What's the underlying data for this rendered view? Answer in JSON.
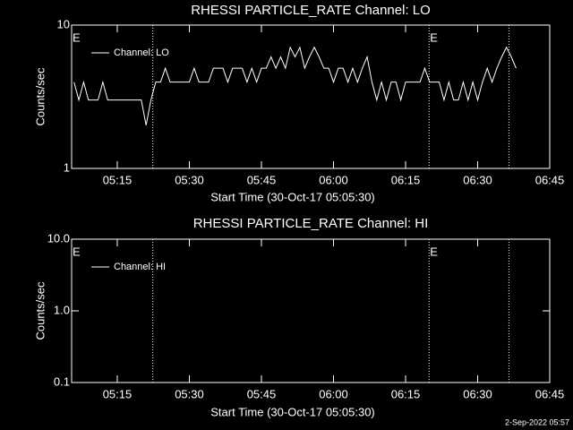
{
  "chart_data": [
    {
      "type": "line",
      "title": "RHESSI PARTICLE_RATE Channel: LO",
      "xlabel": "Start Time (30-Oct-17 05:05:30)",
      "ylabel": "Counts/sec",
      "log_y": true,
      "xlim": [
        305.5,
        405
      ],
      "ylim": [
        1,
        10
      ],
      "xticks": [
        {
          "value": 315,
          "label": "05:15"
        },
        {
          "value": 330,
          "label": "05:30"
        },
        {
          "value": 345,
          "label": "05:45"
        },
        {
          "value": 360,
          "label": "06:00"
        },
        {
          "value": 375,
          "label": "06:15"
        },
        {
          "value": 390,
          "label": "06:30"
        },
        {
          "value": 405,
          "label": "06:45"
        }
      ],
      "yticks": [
        1,
        10
      ],
      "vlines": [
        322.4,
        379.9,
        396.5
      ],
      "annotations": [
        {
          "text": "E",
          "x": 305.5
        },
        {
          "text": "E",
          "x": 379.9
        }
      ],
      "legend": "upper left",
      "x": [
        306,
        307,
        308,
        309,
        310,
        311,
        312,
        313,
        314,
        315,
        316,
        317,
        318,
        319,
        320,
        321,
        322,
        323,
        324,
        325,
        326,
        327,
        328,
        329,
        330,
        331,
        332,
        333,
        334,
        335,
        336,
        337,
        338,
        339,
        340,
        341,
        342,
        343,
        344,
        345,
        346,
        347,
        348,
        349,
        350,
        351,
        352,
        353,
        354,
        355,
        356,
        357,
        358,
        359,
        360,
        361,
        362,
        363,
        364,
        365,
        366,
        367,
        368,
        369,
        370,
        371,
        372,
        373,
        374,
        375,
        376,
        377,
        378,
        379,
        380,
        381,
        382,
        383,
        384,
        385,
        386,
        387,
        388,
        389,
        390,
        391,
        392,
        393,
        394,
        395,
        396,
        397,
        398
      ],
      "series": [
        {
          "name": "Channel: LO",
          "color": "#ffffff",
          "values": [
            4,
            3,
            4,
            3,
            3,
            3,
            4,
            3,
            3,
            3,
            3,
            3,
            3,
            3,
            3,
            2,
            3,
            4,
            4,
            5,
            4,
            4,
            4,
            4,
            4,
            5,
            4,
            4,
            4,
            5,
            5,
            5,
            4,
            5,
            5,
            5,
            4,
            5,
            4,
            5,
            5,
            6,
            5,
            6,
            5,
            7,
            6,
            7,
            5,
            6,
            7,
            6,
            5,
            5,
            4,
            5,
            5,
            4,
            5,
            4,
            5,
            6,
            4,
            3,
            4,
            3,
            4,
            4,
            3,
            4,
            4,
            4,
            4,
            5,
            4,
            4,
            4,
            3,
            4,
            3,
            3,
            4,
            3,
            4,
            3,
            4,
            5,
            4,
            5,
            6,
            7,
            6,
            5
          ]
        }
      ]
    },
    {
      "type": "line",
      "title": "RHESSI PARTICLE_RATE Channel: HI",
      "xlabel": "Start Time (30-Oct-17 05:05:30)",
      "ylabel": "Counts/sec",
      "log_y": true,
      "xlim": [
        305.5,
        405
      ],
      "ylim": [
        0.1,
        10
      ],
      "xticks": [
        {
          "value": 315,
          "label": "05:15"
        },
        {
          "value": 330,
          "label": "05:30"
        },
        {
          "value": 345,
          "label": "05:45"
        },
        {
          "value": 360,
          "label": "06:00"
        },
        {
          "value": 375,
          "label": "06:15"
        },
        {
          "value": 390,
          "label": "06:30"
        },
        {
          "value": 405,
          "label": "06:45"
        }
      ],
      "yticks": [
        0.1,
        {
          "value": 1,
          "label": "1.0"
        },
        {
          "value": 10,
          "label": "10.0"
        }
      ],
      "vlines": [
        322.4,
        379.9,
        396.5
      ],
      "annotations": [
        {
          "text": "E",
          "x": 305.5
        },
        {
          "text": "E",
          "x": 379.9
        }
      ],
      "legend": "upper left",
      "x": [],
      "series": [
        {
          "name": "Channel: HI",
          "color": "#ffffff",
          "values": []
        }
      ]
    }
  ],
  "footer": "2-Sep-2022 05:57"
}
